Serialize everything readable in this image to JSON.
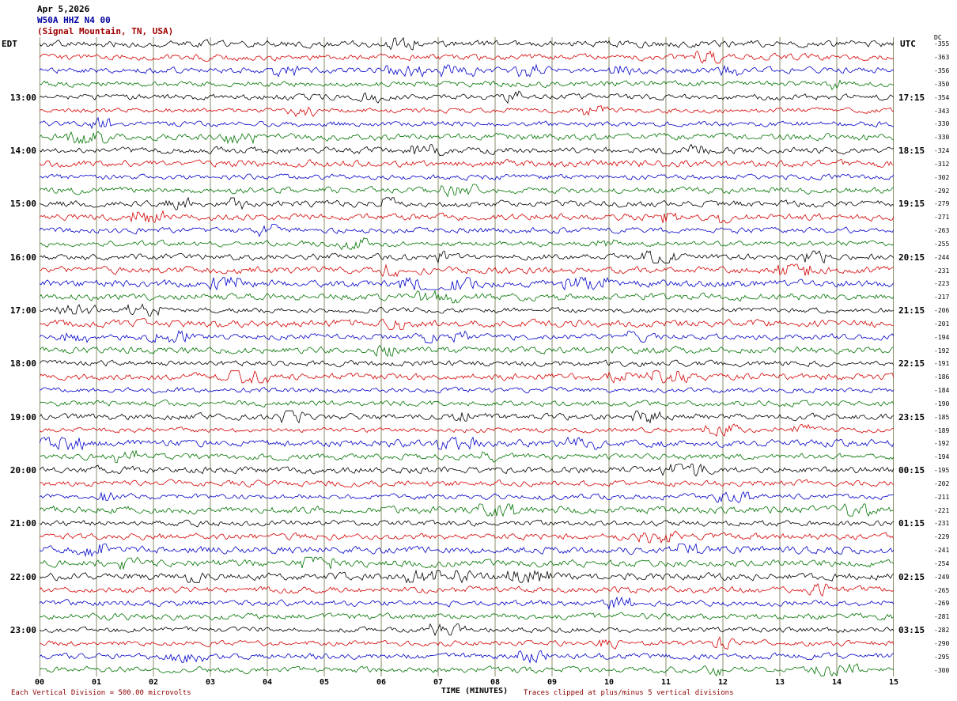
{
  "title": {
    "date": "Apr 5,2026",
    "station": "W50A HHZ N4 00",
    "location": "(Signal Mountain, TN, USA)"
  },
  "axis": {
    "left_header": "EDT",
    "right_header": "UTC",
    "dc_header": "DC",
    "x_label": "TIME (MINUTES)"
  },
  "footer": {
    "scale": "Each Vertical Division =  500.00 microvolts",
    "clip": "Traces clipped at plus/minus 5 vertical divisions"
  },
  "colors": {
    "trace_cycle": [
      "#000000",
      "#d40000",
      "#0000c8",
      "#007300"
    ],
    "grid": "#8b8b6b",
    "title_station": "#0000a0",
    "title_location": "#a00000",
    "footer": "#8b0000"
  },
  "chart_data": {
    "type": "line",
    "title": "W50A HHZ N4 00 (Signal Mountain, TN, USA) helicorder - Apr 5,2026",
    "xlabel": "TIME (MINUTES)",
    "x_range": [
      0,
      15
    ],
    "x_ticks": [
      "00",
      "01",
      "02",
      "03",
      "04",
      "05",
      "06",
      "07",
      "08",
      "09",
      "10",
      "11",
      "12",
      "13",
      "14",
      "15"
    ],
    "num_traces": 48,
    "traces_per_hour": 4,
    "minutes_per_trace": 15,
    "trace_color_cycle": [
      "#000000",
      "#d40000",
      "#0000c8",
      "#007300"
    ],
    "left_time_labels_edt": [
      "13:00",
      "14:00",
      "15:00",
      "16:00",
      "17:00",
      "18:00",
      "19:00",
      "20:00",
      "21:00",
      "22:00",
      "23:00"
    ],
    "right_time_labels_utc": [
      "17:15",
      "18:15",
      "19:15",
      "20:15",
      "21:15",
      "22:15",
      "23:15",
      "00:15",
      "01:15",
      "02:15",
      "03:15"
    ],
    "dc_offsets": [
      -355,
      -363,
      -356,
      -350,
      -354,
      -343,
      -330,
      -330,
      -324,
      -312,
      -302,
      -292,
      -279,
      -271,
      -263,
      -255,
      -244,
      -231,
      -223,
      -217,
      -206,
      -201,
      -194,
      -192,
      -191,
      -186,
      -184,
      -190,
      -185,
      -189,
      -192,
      -194,
      -195,
      -202,
      -211,
      -221,
      -231,
      -229,
      -241,
      -254,
      -249,
      -265,
      -269,
      -281,
      -282,
      -290,
      -295,
      -300
    ],
    "y_scale": "Each Vertical Division = 500.00 microvolts",
    "clipping": "Traces clipped at plus/minus 5 vertical divisions",
    "waveform_note": "continuous ambient seismic noise traces, low amplitude with sparse small bursts"
  }
}
